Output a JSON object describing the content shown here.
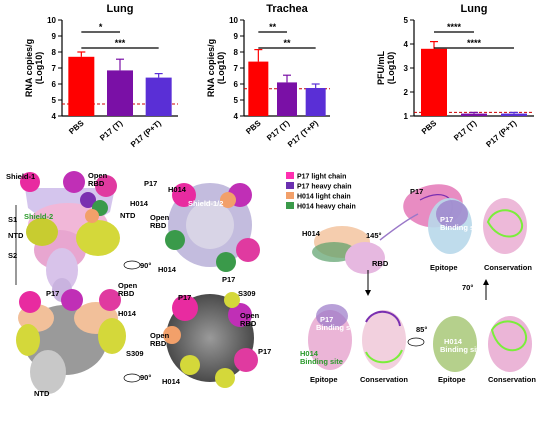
{
  "chart_data": [
    {
      "type": "bar",
      "title": "Lung",
      "ylabel": "RNA copies/g (Log10)",
      "ylim": [
        4,
        10
      ],
      "yticks": [
        4,
        5,
        6,
        7,
        8,
        9,
        10
      ],
      "categories": [
        "PBS",
        "P17 (T)",
        "P17 (P+T)"
      ],
      "values": [
        7.7,
        6.85,
        6.4
      ],
      "errors": [
        0.3,
        0.7,
        0.25
      ],
      "colors": [
        "#ff0000",
        "#7a10a6",
        "#5a2fd6"
      ],
      "dashed_line": 4.75,
      "significance": [
        {
          "from": 0,
          "to": 1,
          "label": "*"
        },
        {
          "from": 0,
          "to": 2,
          "label": "***"
        }
      ]
    },
    {
      "type": "bar",
      "title": "Trachea",
      "ylabel": "RNA copies/g (Log10)",
      "ylim": [
        4,
        10
      ],
      "yticks": [
        4,
        5,
        6,
        7,
        8,
        9,
        10
      ],
      "categories": [
        "PBS",
        "P17 (T)",
        "P17 (T+P)"
      ],
      "values": [
        7.4,
        6.1,
        5.75
      ],
      "errors": [
        0.75,
        0.45,
        0.25
      ],
      "colors": [
        "#ff0000",
        "#7a10a6",
        "#5a2fd6"
      ],
      "dashed_line": 5.7,
      "significance": [
        {
          "from": 0,
          "to": 1,
          "label": "**"
        },
        {
          "from": 0,
          "to": 2,
          "label": "**"
        }
      ]
    },
    {
      "type": "bar",
      "title": "Lung",
      "ylabel": "PFU/mL (Log10)",
      "ylim": [
        1,
        5
      ],
      "yticks": [
        1,
        2,
        3,
        4,
        5
      ],
      "categories": [
        "PBS",
        "P17 (T)",
        "P17 (P+T)"
      ],
      "values": [
        3.8,
        1.1,
        1.1
      ],
      "errors": [
        0.3,
        0.05,
        0.05
      ],
      "colors": [
        "#ff0000",
        "#7a10a6",
        "#5a2fd6"
      ],
      "dashed_line": 1.15,
      "significance": [
        {
          "from": 0,
          "to": 1,
          "label": "****"
        },
        {
          "from": 0,
          "to": 2,
          "label": "****"
        }
      ]
    }
  ],
  "structure": {
    "left_labels": {
      "shield1": "Shield-1",
      "shield2": "Shield-2",
      "s1": "S1",
      "s2": "S2",
      "ntd": "NTD",
      "p17": "P17",
      "h014": "H014",
      "open_rbd_open": "Open",
      "open_rbd_rbd": "RBD",
      "s309": "S309",
      "rot90": "90°"
    },
    "legend": [
      {
        "label": "P17 light chain",
        "color": "#ff2fb0"
      },
      {
        "label": "P17 heavy chain",
        "color": "#6a2fb0"
      },
      {
        "label": "H014 light chain",
        "color": "#f2a06a"
      },
      {
        "label": "H014 heavy chain",
        "color": "#3a9a4a"
      }
    ],
    "right_labels": {
      "p17": "P17",
      "h014": "H014",
      "rbd": "RBD",
      "angle": "145°",
      "p17_binding_a": "P17",
      "binding_site": "Binding site",
      "h014_binding": "H014",
      "epitope": "Epitope",
      "conservation": "Conservation",
      "angle70": "70°",
      "angle85": "85°"
    }
  }
}
